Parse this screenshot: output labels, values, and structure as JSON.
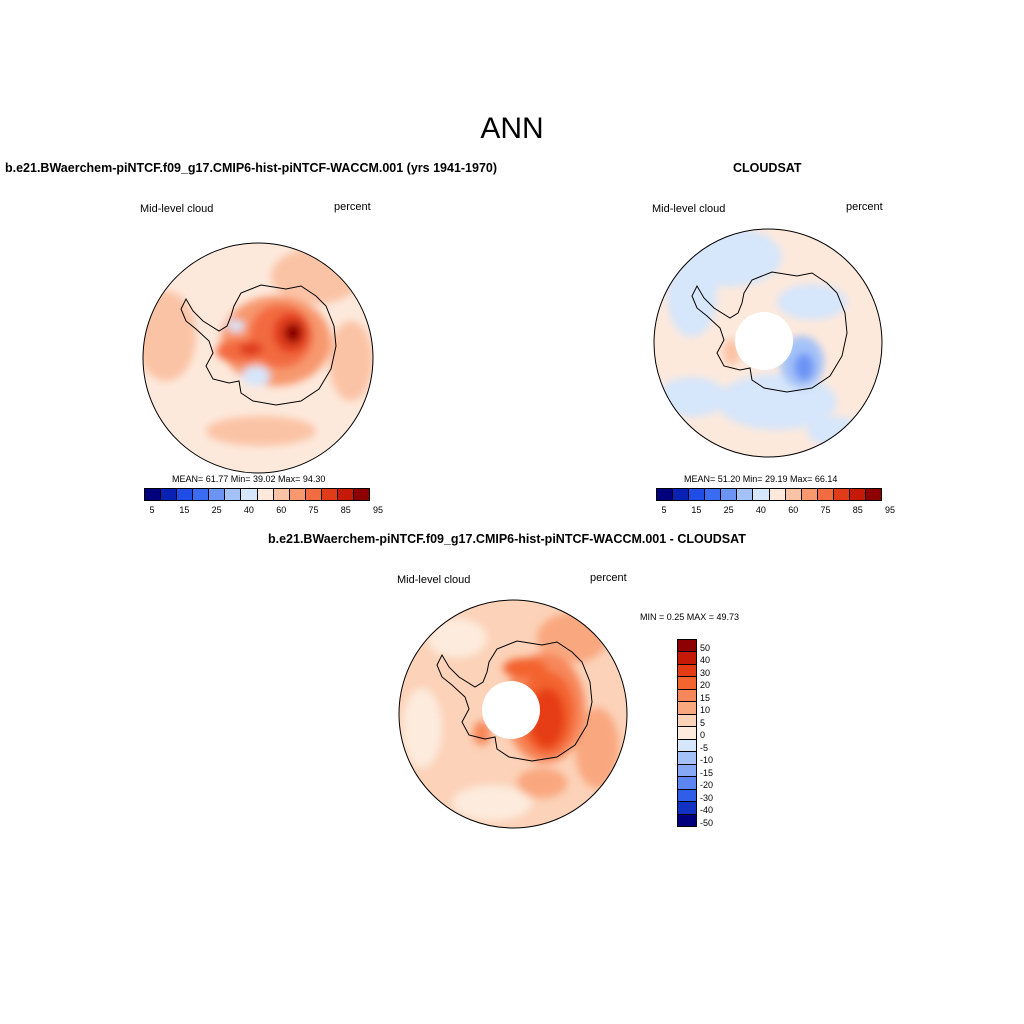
{
  "header": {
    "title": "ANN"
  },
  "panels": [
    {
      "title": "b.e21.BWaerchem-piNTCF.f09_g17.CMIP6-hist-piNTCF-WACCM.001 (yrs 1941-1970)",
      "left_label": "Mid-level cloud",
      "right_label": "percent",
      "stats": "MEAN=  61.77  Min=  39.02  Max=  94.30",
      "labels": [
        "5",
        "15",
        "25",
        "40",
        "60",
        "75",
        "85",
        "95"
      ]
    },
    {
      "title": "CLOUDSAT",
      "left_label": "Mid-level cloud",
      "right_label": "percent",
      "stats": "MEAN=  51.20  Min=  29.19  Max=  66.14",
      "labels": [
        "5",
        "15",
        "25",
        "40",
        "60",
        "75",
        "85",
        "95"
      ]
    },
    {
      "title": "b.e21.BWaerchem-piNTCF.f09_g17.CMIP6-hist-piNTCF-WACCM.001 - CLOUDSAT",
      "left_label": "Mid-level cloud",
      "right_label": "percent",
      "stats": "MIN =   0.25 MAX =  49.73",
      "labels": [
        "50",
        "40",
        "30",
        "20",
        "15",
        "10",
        "5",
        "0",
        "-5",
        "-10",
        "-15",
        "-20",
        "-30",
        "-40",
        "-50"
      ]
    }
  ],
  "colors": {
    "abs_scale": [
      "#00007f",
      "#0a22b3",
      "#1f4de6",
      "#3a6cf2",
      "#6c94f5",
      "#a4c2f8",
      "#d6e6fb",
      "#fde9dc",
      "#fbc3a5",
      "#f7986e",
      "#f36b40",
      "#e03c1a",
      "#c51a07",
      "#8d0101"
    ],
    "diff_scale": [
      "#8d0101",
      "#c51a07",
      "#e63c16",
      "#f3642e",
      "#f7875a",
      "#f9a77f",
      "#fcd2b8",
      "#fdebdd",
      "#d6e6fb",
      "#a4c2f8",
      "#85a9f6",
      "#5e86f2",
      "#2f5ee8",
      "#1232c4",
      "#00007f"
    ]
  }
}
